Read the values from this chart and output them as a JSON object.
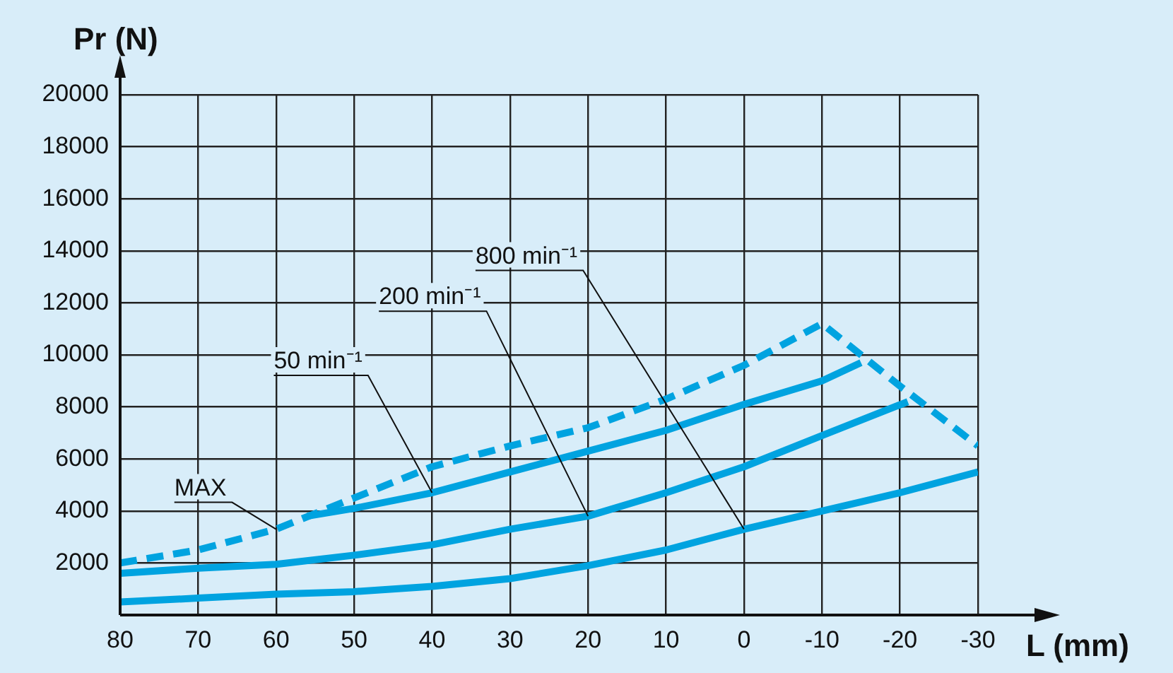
{
  "chart_data": {
    "type": "line",
    "xlabel": "L (mm)",
    "ylabel": "Pr (N)",
    "x": [
      80,
      70,
      60,
      50,
      40,
      30,
      20,
      10,
      0,
      -10,
      -20,
      -30
    ],
    "xlim": [
      80,
      -30
    ],
    "xticks": [
      80,
      70,
      60,
      50,
      40,
      30,
      20,
      10,
      0,
      -10,
      -20,
      -30
    ],
    "ylim": [
      0,
      20000
    ],
    "yticks": [
      2000,
      4000,
      6000,
      8000,
      10000,
      12000,
      14000,
      16000,
      18000,
      20000
    ],
    "grid": true,
    "legend": false,
    "marker": "none",
    "series": [
      {
        "name": "MAX",
        "color": "#00a3e0",
        "line_style": "dashed",
        "values": [
          2000,
          2500,
          3300,
          4500,
          5700,
          6500,
          7200,
          8300,
          9600,
          11200,
          8800,
          6500
        ]
      },
      {
        "name": "50 min⁻¹",
        "color": "#00a3e0",
        "line_style": "solid",
        "x": [
          56,
          50,
          40,
          30,
          20,
          10,
          0,
          -10,
          -15
        ],
        "values": [
          3800,
          4100,
          4700,
          5500,
          6300,
          7100,
          8100,
          9000,
          9700
        ]
      },
      {
        "name": "200 min⁻¹",
        "color": "#00a3e0",
        "line_style": "solid",
        "x": [
          80,
          70,
          60,
          50,
          40,
          30,
          20,
          10,
          0,
          -10,
          -21
        ],
        "values": [
          1600,
          1800,
          1950,
          2300,
          2700,
          3300,
          3800,
          4700,
          5700,
          6900,
          8200
        ]
      },
      {
        "name": "800 min⁻¹",
        "color": "#00a3e0",
        "line_style": "solid",
        "values": [
          500,
          650,
          800,
          900,
          1100,
          1400,
          1900,
          2500,
          3300,
          4000,
          4700,
          5500
        ]
      }
    ]
  }
}
